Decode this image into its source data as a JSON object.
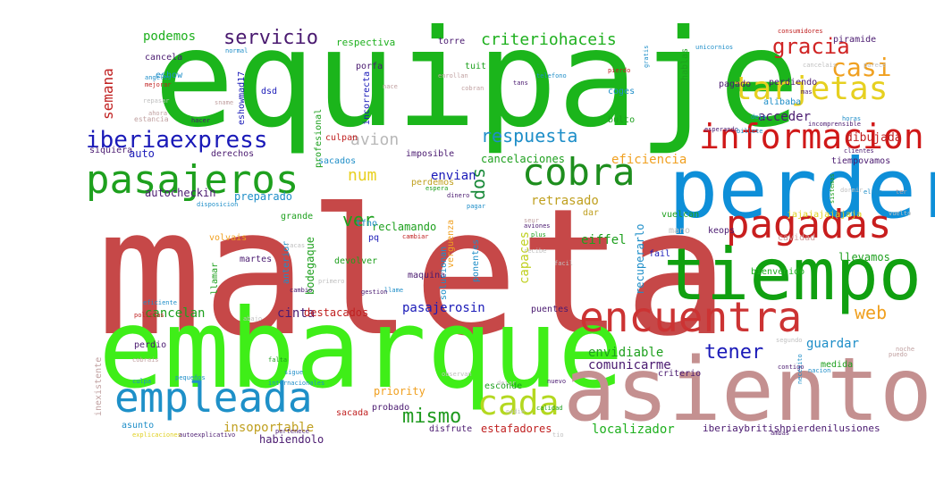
{
  "word_cloud": {
    "words": [
      {
        "text": "maleta",
        "color": "#c64848"
      },
      {
        "text": "equipaje",
        "color": "#1bb51b"
      },
      {
        "text": "embarque",
        "color": "#3fee18"
      },
      {
        "text": "asiento",
        "color": "#c49090"
      },
      {
        "text": "perder",
        "color": "#0e8fd8"
      },
      {
        "text": "tiempo",
        "color": "#10a010"
      },
      {
        "text": "encuentra",
        "color": "#cc3333"
      },
      {
        "text": "pasajeros",
        "color": "#1ea01e"
      },
      {
        "text": "pagadas",
        "color": "#c81e1e"
      },
      {
        "text": "cobra",
        "color": "#1e8e1e"
      },
      {
        "text": "empleada",
        "color": "#1e90c8"
      },
      {
        "text": "informacion",
        "color": "#d01818"
      },
      {
        "text": "tarjetas",
        "color": "#e6d020"
      },
      {
        "text": "cada",
        "color": "#b4d820"
      },
      {
        "text": "gracia",
        "color": "#d02424"
      },
      {
        "text": "casi",
        "color": "#f0a020"
      },
      {
        "text": "iberiaexpress",
        "color": "#1a1ab8"
      },
      {
        "text": "servicio",
        "color": "#4a1a70"
      },
      {
        "text": "respuesta",
        "color": "#1e8ec8"
      },
      {
        "text": "avion",
        "color": "#b8b8b8"
      },
      {
        "text": "criteriohaceis",
        "color": "#1eb01e"
      },
      {
        "text": "mismo",
        "color": "#1e9a1e"
      },
      {
        "text": "tener",
        "color": "#1a1ab8"
      },
      {
        "text": "web",
        "color": "#f0a020"
      },
      {
        "text": "ver",
        "color": "#1ea01e"
      },
      {
        "text": "num",
        "color": "#e8d020"
      },
      {
        "text": "dos",
        "color": "#1a8a3a"
      },
      {
        "text": "podemos",
        "color": "#1eb01e"
      },
      {
        "text": "semana",
        "color": "#c02020"
      },
      {
        "text": "cancelan",
        "color": "#1ea01e"
      },
      {
        "text": "cinta",
        "color": "#4a1a70"
      },
      {
        "text": "pasajerosin",
        "color": "#1a1ab8"
      },
      {
        "text": "eficiencia",
        "color": "#f0a020"
      },
      {
        "text": "cancelaciones",
        "color": "#1ea01e"
      },
      {
        "text": "envidiable",
        "color": "#1ea01e"
      },
      {
        "text": "guardar",
        "color": "#1e8ec8"
      },
      {
        "text": "comunicarme",
        "color": "#4a1a70"
      },
      {
        "text": "priority",
        "color": "#f0a020"
      },
      {
        "text": "insoportable",
        "color": "#c0a020"
      },
      {
        "text": "localizador",
        "color": "#1eb01e"
      },
      {
        "text": "iberiaybritishpierdenilusiones",
        "color": "#4a1a70"
      },
      {
        "text": "estafadores",
        "color": "#c02020"
      },
      {
        "text": "habiendolo",
        "color": "#4a1a70"
      },
      {
        "text": "acceder",
        "color": "#4a1a70"
      },
      {
        "text": "dibujada",
        "color": "#c02020"
      },
      {
        "text": "retrasado",
        "color": "#c0a020"
      },
      {
        "text": "envian",
        "color": "#1a1ab8"
      },
      {
        "text": "capaces",
        "color": "#c0d020"
      },
      {
        "text": "autocheckin",
        "color": "#4a1a70"
      },
      {
        "text": "preparado",
        "color": "#1e8ec8"
      },
      {
        "text": "reclamando",
        "color": "#1ea01e"
      },
      {
        "text": "destacados",
        "color": "#c02020"
      },
      {
        "text": "eiffel",
        "color": "#1ea01e"
      },
      {
        "text": "llevamos",
        "color": "#1ea01e"
      },
      {
        "text": "recuperarlo",
        "color": "#1e8ec8"
      },
      {
        "text": "bodegaque",
        "color": "#1ea01e"
      },
      {
        "text": "perdiendo",
        "color": "#4a1a70"
      },
      {
        "text": "tiempovamos",
        "color": "#4a1a70"
      },
      {
        "text": "pagado",
        "color": "#4a1a70"
      },
      {
        "text": "piramide",
        "color": "#4a1a70"
      },
      {
        "text": "respectiva",
        "color": "#1eb01e"
      },
      {
        "text": "tuit",
        "color": "#1ea01e"
      },
      {
        "text": "torre",
        "color": "#4a1a70"
      },
      {
        "text": "cancela",
        "color": "#4a1a70"
      },
      {
        "text": "eshow",
        "color": "#1e8ec8"
      },
      {
        "text": "dsd",
        "color": "#1a1ab8"
      },
      {
        "text": "porfa",
        "color": "#4a1a70"
      },
      {
        "text": "coges",
        "color": "#1e8ec8"
      },
      {
        "text": "alibaba",
        "color": "#1e8ec8"
      },
      {
        "text": "bulto",
        "color": "#1ea01e"
      },
      {
        "text": "culpan",
        "color": "#c02020"
      },
      {
        "text": "siquiera",
        "color": "#4a1a70"
      },
      {
        "text": "auto",
        "color": "#1a1ab8"
      },
      {
        "text": "derechos",
        "color": "#4a1a70"
      },
      {
        "text": "sacados",
        "color": "#1e8ec8"
      },
      {
        "text": "imposible",
        "color": "#4a1a70"
      },
      {
        "text": "perdemos",
        "color": "#c0a020"
      },
      {
        "text": "grande",
        "color": "#1ea01e"
      },
      {
        "text": "tfno",
        "color": "#1e8ec8"
      },
      {
        "text": "pq",
        "color": "#1a1ab8"
      },
      {
        "text": "dar",
        "color": "#c0a020"
      },
      {
        "text": "vuelcan",
        "color": "#1ea01e"
      },
      {
        "text": "jajajajajajaja",
        "color": "#e0d020"
      },
      {
        "text": "mano",
        "color": "#c0c0c0"
      },
      {
        "text": "keops",
        "color": "#4a1a70"
      },
      {
        "text": "cavidad",
        "color": "#d0a0a0"
      },
      {
        "text": "fail",
        "color": "#1a1ab8"
      },
      {
        "text": "volvais",
        "color": "#f0a020"
      },
      {
        "text": "llamar",
        "color": "#1ea01e"
      },
      {
        "text": "martes",
        "color": "#4a1a70"
      },
      {
        "text": "anterior",
        "color": "#1e8ec8"
      },
      {
        "text": "devolver",
        "color": "#1ea01e"
      },
      {
        "text": "maquina",
        "color": "#4a1a70"
      },
      {
        "text": "bienvenido",
        "color": "#1eb01e"
      },
      {
        "text": "criterio",
        "color": "#4a1a70"
      },
      {
        "text": "puentes",
        "color": "#4a1a70"
      },
      {
        "text": "sacada",
        "color": "#c02020"
      },
      {
        "text": "esconde",
        "color": "#1ea01e"
      },
      {
        "text": "probado",
        "color": "#4a1a70"
      },
      {
        "text": "asunto",
        "color": "#1e8ec8"
      },
      {
        "text": "profesional",
        "color": "#1ea01e"
      },
      {
        "text": "incorrecta",
        "color": "#1a1ab8"
      },
      {
        "text": "eshowmad17",
        "color": "#1a1ab8"
      },
      {
        "text": "hablas",
        "color": "#1ea01e"
      },
      {
        "text": "solucionan",
        "color": "#1e8ec8"
      },
      {
        "text": "verguenza",
        "color": "#f0a020"
      },
      {
        "text": "ponentes",
        "color": "#1e8ec8"
      },
      {
        "text": "inexistente",
        "color": "#c0a0a0"
      },
      {
        "text": "medida",
        "color": "#1ea01e"
      },
      {
        "text": "disfrute",
        "color": "#4a1a70"
      },
      {
        "text": "perdio",
        "color": "#4a1a70"
      },
      {
        "text": "estancia",
        "color": "#c0a0a0"
      },
      {
        "text": "consumidores",
        "color": "#c02020"
      },
      {
        "text": "unicornios",
        "color": "#1e8ec8"
      },
      {
        "text": "cancelais",
        "color": "#c0c0c0"
      },
      {
        "text": "parece",
        "color": "#c0c0c0"
      },
      {
        "text": "telefono",
        "color": "#1e8ec8"
      },
      {
        "text": "esperando",
        "color": "#4a1a70"
      },
      {
        "text": "clientes",
        "color": "#4a1a70"
      },
      {
        "text": "pierdo",
        "color": "#c02020"
      },
      {
        "text": "gratis",
        "color": "#1e8ec8"
      },
      {
        "text": "cobran",
        "color": "#c0a0a0"
      },
      {
        "text": "enrollan",
        "color": "#c0a0a0"
      },
      {
        "text": "nace",
        "color": "#c0a0a0"
      },
      {
        "text": "tans",
        "color": "#4a1a70"
      },
      {
        "text": "policias",
        "color": "#c02020"
      },
      {
        "text": "internacionales",
        "color": "#1e8ec8"
      },
      {
        "text": "observan",
        "color": "#c0c0c0"
      },
      {
        "text": "cambiar",
        "color": "#c02020"
      },
      {
        "text": "recibe",
        "color": "#c0c0c0"
      },
      {
        "text": "llame",
        "color": "#1e8ec8"
      },
      {
        "text": "pequeños",
        "color": "#1e8ec8"
      },
      {
        "text": "cobrais",
        "color": "#c0a0a0"
      },
      {
        "text": "culpa",
        "color": "#1e8ec8"
      },
      {
        "text": "explicaciones",
        "color": "#e0d020"
      },
      {
        "text": "autoexplicativo",
        "color": "#4a1a70"
      },
      {
        "text": "pertenece",
        "color": "#4a1a70"
      },
      {
        "text": "tio",
        "color": "#c0c0c0"
      },
      {
        "text": "ambas",
        "color": "#4a1a70"
      },
      {
        "text": "nacion",
        "color": "#1e8ec8"
      },
      {
        "text": "segundo",
        "color": "#c0c0c0"
      },
      {
        "text": "vuelto",
        "color": "#c0c0c0"
      },
      {
        "text": "noche",
        "color": "#c0a0a0"
      },
      {
        "text": "puedo",
        "color": "#c0a0a0"
      },
      {
        "text": "horas",
        "color": "#1e8ec8"
      },
      {
        "text": "mas",
        "color": "#4a1a70"
      },
      {
        "text": "deja",
        "color": "#1e8ec8"
      },
      {
        "text": "billete",
        "color": "#1e8ec8"
      },
      {
        "text": "necesito",
        "color": "#1e8ec8"
      },
      {
        "text": "contigo",
        "color": "#4a1a70"
      },
      {
        "text": "mejorar",
        "color": "#c02020"
      },
      {
        "text": "normal",
        "color": "#1e8ec8"
      },
      {
        "text": "repasar",
        "color": "#c0c0c0"
      },
      {
        "text": "angeles",
        "color": "#1e8ec8"
      },
      {
        "text": "ahora",
        "color": "#c0a0a0"
      },
      {
        "text": "hacer",
        "color": "#4a1a70"
      },
      {
        "text": "disposicion",
        "color": "#1e8ec8"
      },
      {
        "text": "pagar",
        "color": "#1e8ec8"
      },
      {
        "text": "espera",
        "color": "#1ea01e"
      },
      {
        "text": "dinero",
        "color": "#4a1a70"
      },
      {
        "text": "plus",
        "color": "#1ea01e"
      },
      {
        "text": "dejar",
        "color": "#c0c0c0"
      },
      {
        "text": "seur",
        "color": "#c0a0a0"
      },
      {
        "text": "aviones",
        "color": "#4a1a70"
      },
      {
        "text": "dormir",
        "color": "#c0c0c0"
      },
      {
        "text": "elige",
        "color": "#1e8ec8"
      },
      {
        "text": "sistemas",
        "color": "#1ea01e"
      },
      {
        "text": "ter",
        "color": "#c0a0a0"
      },
      {
        "text": "tacas",
        "color": "#c0c0c0"
      },
      {
        "text": "primero",
        "color": "#c0c0c0"
      },
      {
        "text": "gestion",
        "color": "#4a1a70"
      },
      {
        "text": "abajo",
        "color": "#c0c0c0"
      },
      {
        "text": "falta",
        "color": "#1ea01e"
      },
      {
        "text": "sigue",
        "color": "#1e8ec8"
      },
      {
        "text": "cambio",
        "color": "#4a1a70"
      },
      {
        "text": "facil",
        "color": "#c0c0c0"
      },
      {
        "text": "nuevo",
        "color": "#4a1a70"
      },
      {
        "text": "calidad",
        "color": "#1ea01e"
      },
      {
        "text": "incomprensible",
        "color": "#4a1a70"
      },
      {
        "text": "eficiente",
        "color": "#1e8ec8"
      },
      {
        "text": "nadie",
        "color": "#c0c0c0"
      },
      {
        "text": "sname",
        "color": "#c0a0a0"
      }
    ]
  }
}
